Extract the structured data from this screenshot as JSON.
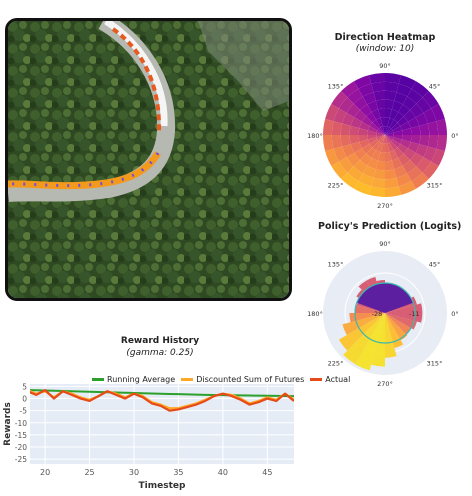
{
  "heatmap": {
    "title": "Direction Heatmap",
    "subtitle": "(window: 10)",
    "angle_labels": [
      "90°",
      "45°",
      "0°",
      "315°",
      "270°",
      "225°",
      "180°",
      "135°"
    ]
  },
  "policy": {
    "title": "Policy's Prediction (Logits)",
    "angle_labels": [
      "90°",
      "45°",
      "0°",
      "315°",
      "270°",
      "225°",
      "180°",
      "135°"
    ],
    "radial_labels": [
      "-28",
      "-11"
    ]
  },
  "reward": {
    "title": "Reward History",
    "subtitle": "(gamma: 0.25)"
  },
  "chart_data": {
    "type": "line",
    "title": "Reward History",
    "subtitle": "(gamma: 0.25)",
    "xlabel": "Timestep",
    "ylabel": "Rewards",
    "xlim": [
      18.3,
      48
    ],
    "ylim": [
      -27,
      6
    ],
    "xticks": [
      20,
      25,
      30,
      35,
      40,
      45
    ],
    "yticks": [
      5,
      0,
      -5,
      -10,
      -15,
      -20,
      -25
    ],
    "x": [
      18,
      19,
      20,
      21,
      22,
      23,
      24,
      25,
      26,
      27,
      28,
      29,
      30,
      31,
      32,
      33,
      34,
      35,
      36,
      37,
      38,
      39,
      40,
      41,
      42,
      43,
      44,
      45,
      46,
      47,
      48
    ],
    "series": [
      {
        "name": "Running Average",
        "color": "#2ca02c",
        "values": [
          3.5,
          3.4,
          3.3,
          3.2,
          3.1,
          3.0,
          2.9,
          2.8,
          2.7,
          2.6,
          2.5,
          2.4,
          2.3,
          2.2,
          2.1,
          2.0,
          1.9,
          1.8,
          1.7,
          1.6,
          1.5,
          1.45,
          1.4,
          1.35,
          1.3,
          1.25,
          1.2,
          1.15,
          1.1,
          1.05,
          1.0
        ]
      },
      {
        "name": "Discounted Sum of Futures",
        "color": "#ffa726",
        "values": [
          3.5,
          2,
          3,
          0.5,
          3,
          2,
          0.5,
          -0.5,
          1,
          3,
          2,
          0.5,
          2,
          1,
          -1.5,
          -2.5,
          -4,
          -4,
          -3,
          -2,
          -0.5,
          1,
          2,
          1.5,
          0,
          -2,
          -1,
          0.5,
          -0.5,
          2,
          -0.5
        ]
      },
      {
        "name": "Actual",
        "color": "#e64a19",
        "values": [
          3,
          1.5,
          3.5,
          0,
          3,
          1.5,
          0,
          -1,
          1,
          3,
          1.5,
          0,
          2,
          0.5,
          -2,
          -3,
          -5,
          -4.5,
          -3.5,
          -2.5,
          -1,
          1,
          2,
          1,
          -0.5,
          -2.5,
          -1.5,
          0,
          -1,
          2,
          -1
        ]
      }
    ],
    "legend_position": "top"
  }
}
